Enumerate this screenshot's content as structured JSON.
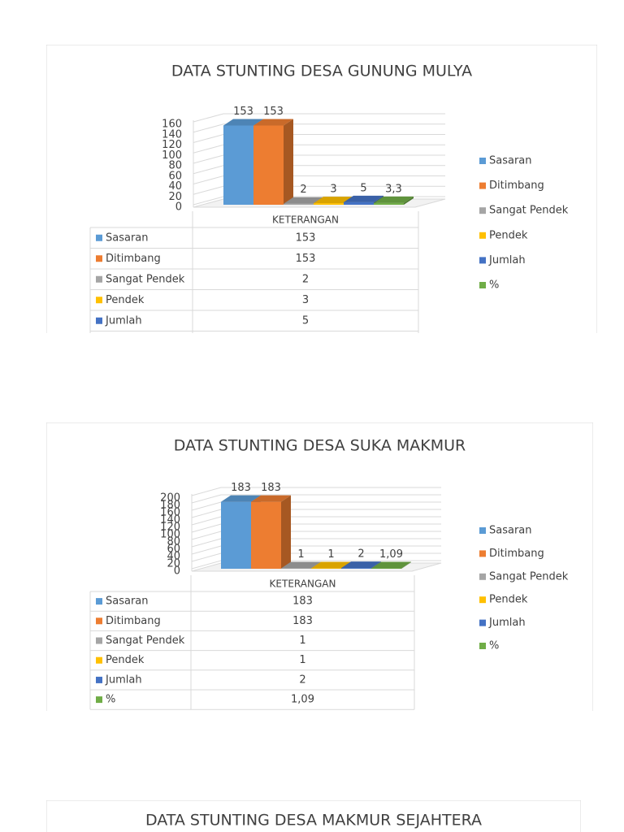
{
  "chart_data": [
    {
      "type": "bar",
      "title": "DATA STUNTING DESA GUNUNG MULYA",
      "categories": [
        "KETERANGAN"
      ],
      "series": [
        {
          "name": "Sasaran",
          "color": "#5b9bd5",
          "values": [
            153
          ]
        },
        {
          "name": "Ditimbang",
          "color": "#ed7d31",
          "values": [
            153
          ]
        },
        {
          "name": "Sangat Pendek",
          "color": "#a5a5a5",
          "values": [
            2
          ]
        },
        {
          "name": "Pendek",
          "color": "#ffc000",
          "values": [
            3
          ]
        },
        {
          "name": "Jumlah",
          "color": "#4472c4",
          "values": [
            5
          ]
        },
        {
          "name": "%",
          "color": "#70ad47",
          "values": [
            3.3
          ],
          "value_labels": [
            "3,3"
          ]
        }
      ],
      "ylim": [
        0,
        160
      ],
      "yticks": [
        0,
        20,
        40,
        60,
        80,
        100,
        120,
        140,
        160
      ],
      "grid": true,
      "legend": "right"
    },
    {
      "type": "bar",
      "title": "DATA STUNTING DESA SUKA MAKMUR",
      "categories": [
        "KETERANGAN"
      ],
      "series": [
        {
          "name": "Sasaran",
          "color": "#5b9bd5",
          "values": [
            183
          ]
        },
        {
          "name": "Ditimbang",
          "color": "#ed7d31",
          "values": [
            183
          ]
        },
        {
          "name": "Sangat Pendek",
          "color": "#a5a5a5",
          "values": [
            1
          ]
        },
        {
          "name": "Pendek",
          "color": "#ffc000",
          "values": [
            1
          ]
        },
        {
          "name": "Jumlah",
          "color": "#4472c4",
          "values": [
            2
          ]
        },
        {
          "name": "%",
          "color": "#70ad47",
          "values": [
            1.09
          ],
          "value_labels": [
            "1,09"
          ]
        }
      ],
      "ylim": [
        0,
        200
      ],
      "yticks": [
        0,
        20,
        40,
        60,
        80,
        100,
        120,
        140,
        160,
        180,
        200
      ],
      "grid": true,
      "legend": "right"
    },
    {
      "type": "bar",
      "title": "DATA STUNTING DESA MAKMUR SEJAHTERA"
    }
  ]
}
